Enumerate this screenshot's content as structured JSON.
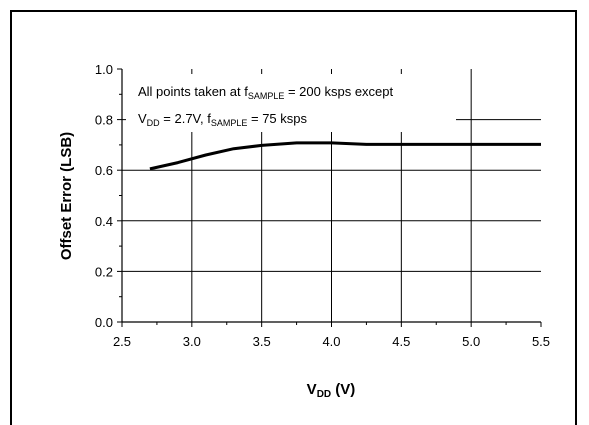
{
  "chart_data": {
    "type": "line",
    "title": "",
    "xlabel": "V",
    "xlabel_sub": "DD",
    "xlabel_unit": " (V)",
    "ylabel": "Offset Error (LSB)",
    "xlim": [
      2.5,
      5.5
    ],
    "ylim": [
      0.0,
      1.0
    ],
    "x_ticks": [
      "2.5",
      "3.0",
      "3.5",
      "4.0",
      "4.5",
      "5.0",
      "5.5"
    ],
    "y_ticks": [
      "0.0",
      "0.2",
      "0.4",
      "0.6",
      "0.8",
      "1.0"
    ],
    "grid": true,
    "series": [
      {
        "color": "#000000",
        "x": [
          2.7,
          2.9,
          3.1,
          3.3,
          3.5,
          3.75,
          4.0,
          4.25,
          4.5,
          5.0,
          5.5
        ],
        "y": [
          0.605,
          0.63,
          0.66,
          0.685,
          0.698,
          0.708,
          0.708,
          0.702,
          0.702,
          0.702,
          0.702
        ]
      }
    ],
    "annotation": {
      "line1_pre": "All points taken at f",
      "line1_sub": "SAMPLE",
      "line1_post": " = 200 ksps except",
      "line2_a": "V",
      "line2_a_sub": "DD",
      "line2_b": " = 2.7V,  f",
      "line2_b_sub": "SAMPLE",
      "line2_c": " = 75 ksps"
    }
  }
}
